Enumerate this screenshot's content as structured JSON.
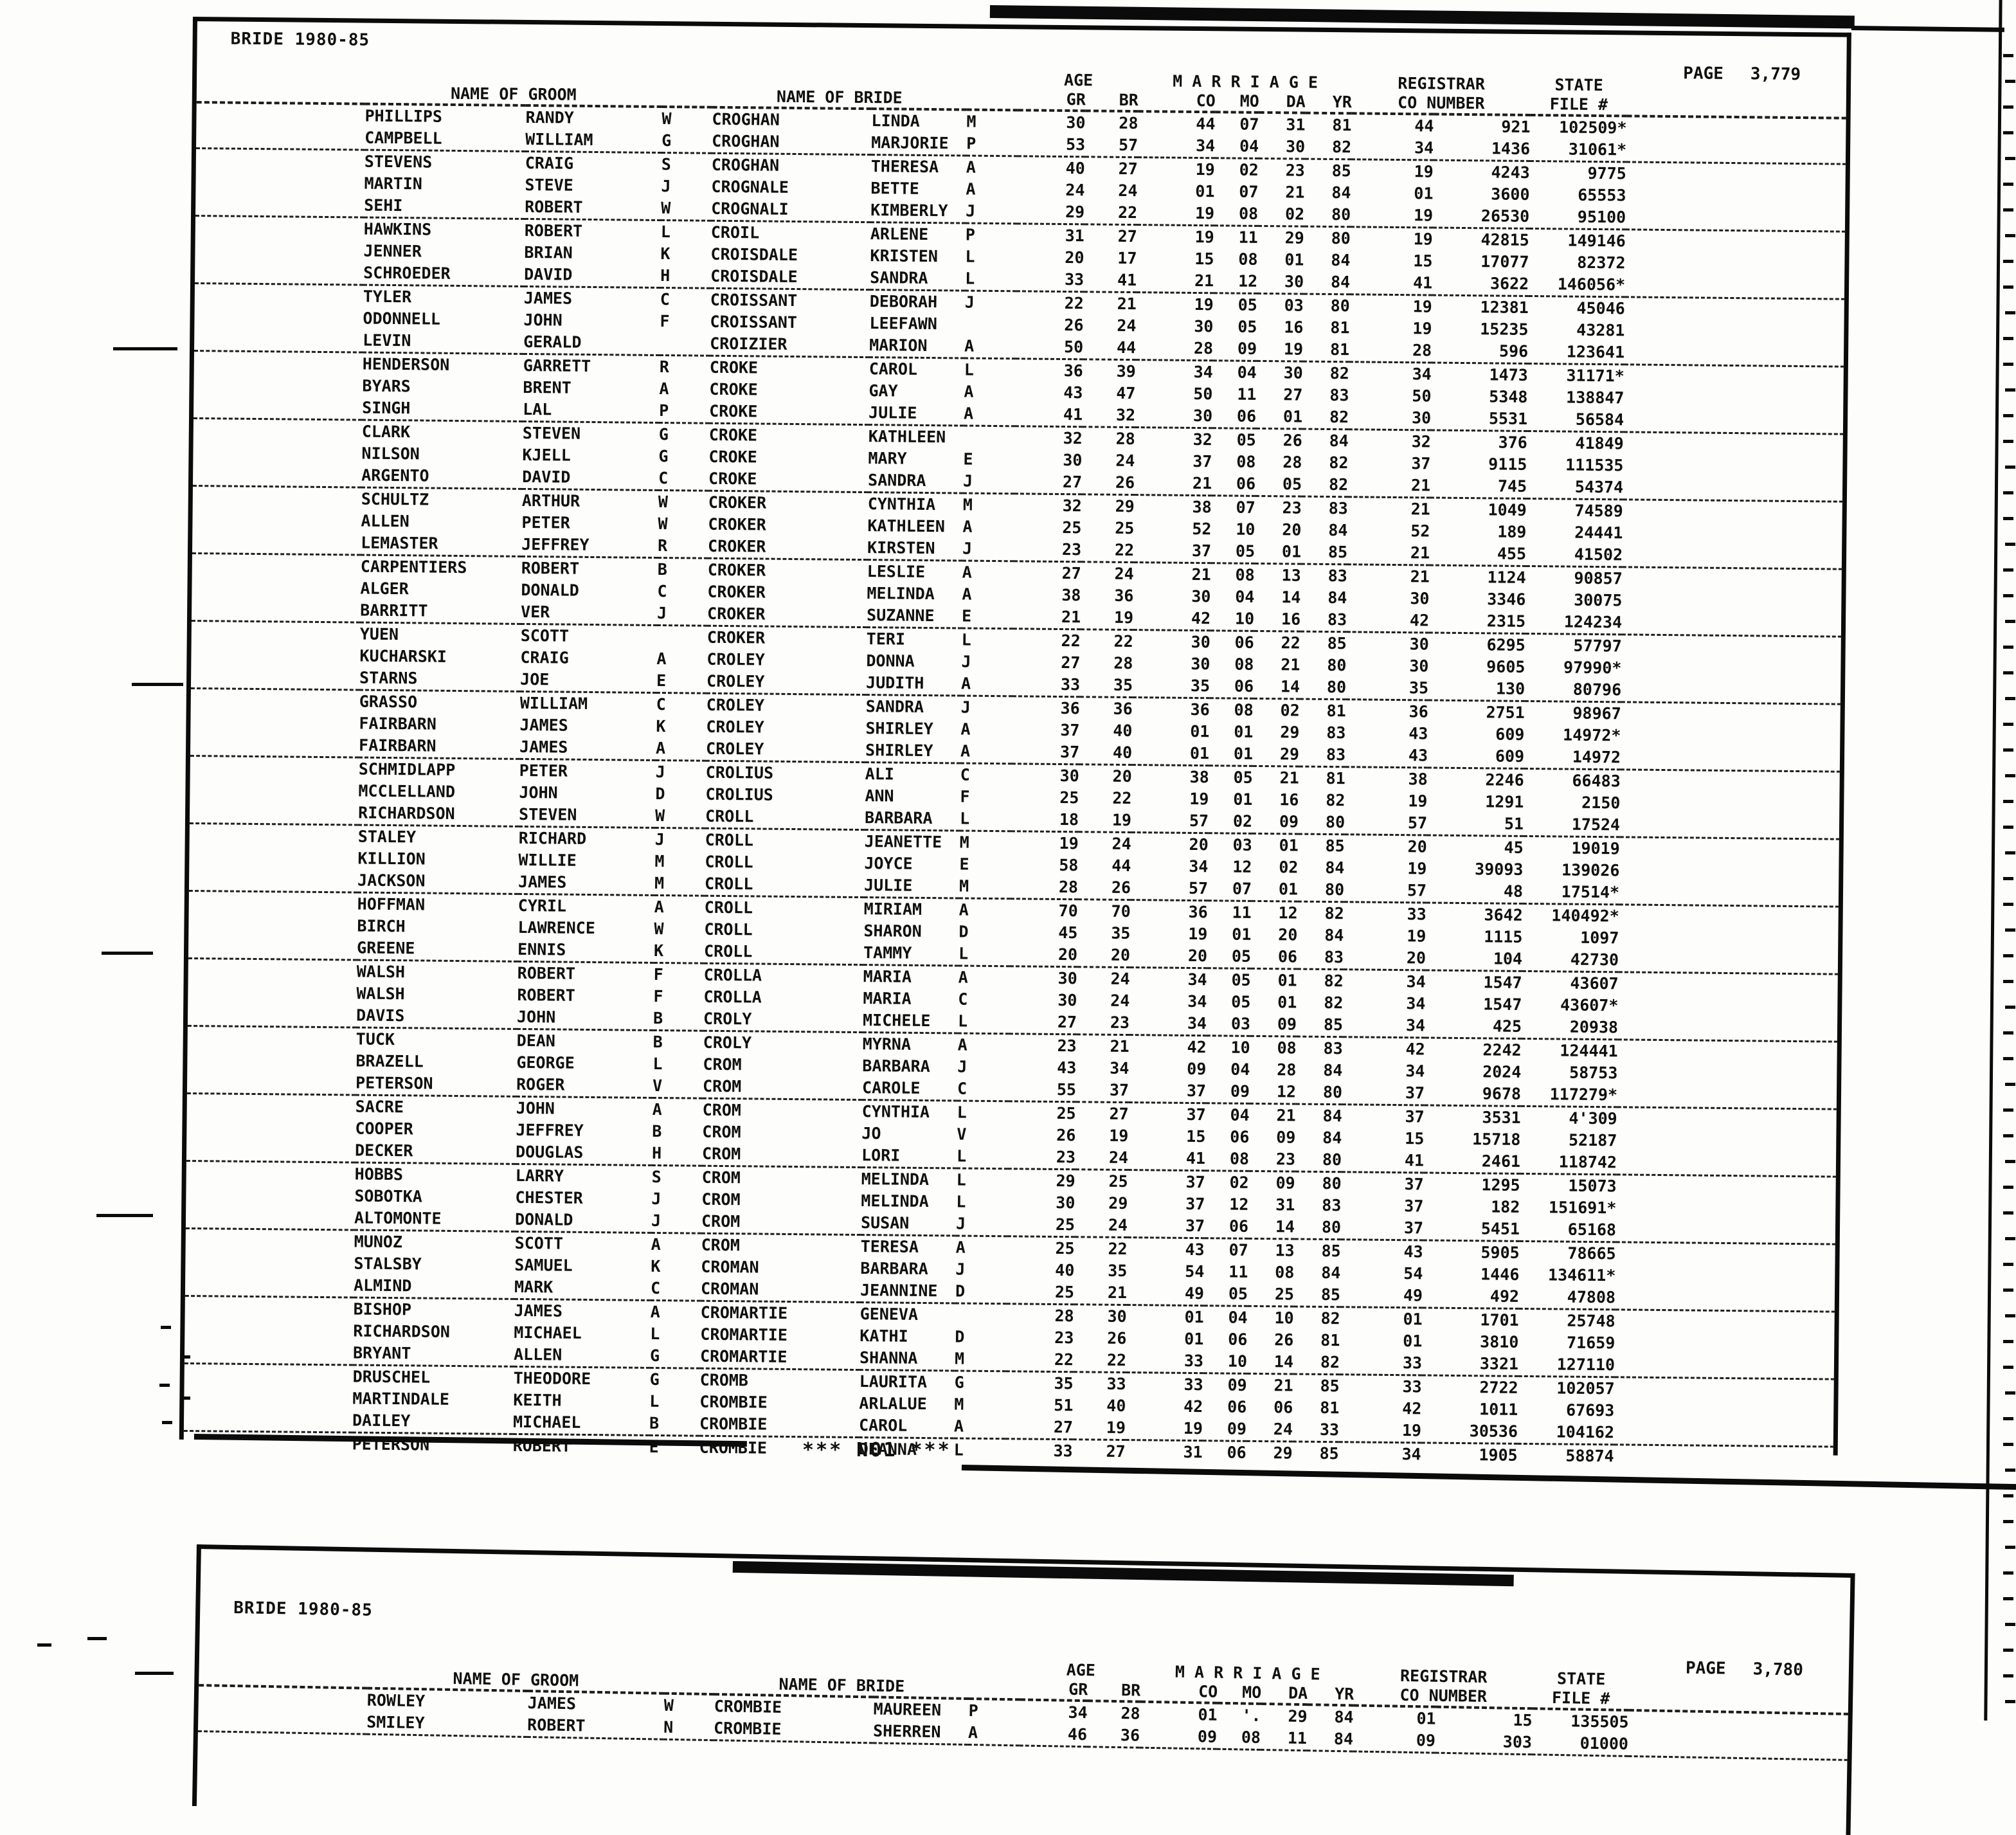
{
  "colors": {
    "ink": "#101010",
    "paper": "#fdfdfb"
  },
  "col_headers": {
    "groom": "NAME OF GROOM",
    "bride": "NAME OF BRIDE",
    "age": "AGE",
    "gr": "GR",
    "br": "BR",
    "marriage": "M A R R I A G E",
    "co": "CO",
    "mo": "MO",
    "da": "DA",
    "yr": "YR",
    "registrar": "REGISTRAR",
    "co_number": "CO NUMBER",
    "state": "STATE",
    "file": "FILE #"
  },
  "separator": {
    "text": "*** N01 ***"
  },
  "page1": {
    "title": "BRIDE 1980-85",
    "page_label": "PAGE",
    "page_number": "3,779",
    "rows": [
      [
        "PHILLIPS",
        "RANDY",
        "W",
        "CROGHAN",
        "LINDA",
        "M",
        "30",
        "28",
        "44",
        "07",
        "31",
        "81",
        "44",
        "921",
        "102509*"
      ],
      [
        "CAMPBELL",
        "WILLIAM",
        "G",
        "CROGHAN",
        "MARJORIE",
        "P",
        "53",
        "57",
        "34",
        "04",
        "30",
        "82",
        "34",
        "1436",
        "31061*"
      ],
      [
        "STEVENS",
        "CRAIG",
        "S",
        "CROGHAN",
        "THERESA",
        "A",
        "40",
        "27",
        "19",
        "02",
        "23",
        "85",
        "19",
        "4243",
        "9775"
      ],
      [
        "MARTIN",
        "STEVE",
        "J",
        "CROGNALE",
        "BETTE",
        "A",
        "24",
        "24",
        "01",
        "07",
        "21",
        "84",
        "01",
        "3600",
        "65553"
      ],
      [
        "SEHI",
        "ROBERT",
        "W",
        "CROGNALI",
        "KIMBERLY",
        "J",
        "29",
        "22",
        "19",
        "08",
        "02",
        "80",
        "19",
        "26530",
        "95100"
      ],
      [
        "HAWKINS",
        "ROBERT",
        "L",
        "CROIL",
        "ARLENE",
        "P",
        "31",
        "27",
        "19",
        "11",
        "29",
        "80",
        "19",
        "42815",
        "149146"
      ],
      [
        "JENNER",
        "BRIAN",
        "K",
        "CROISDALE",
        "KRISTEN",
        "L",
        "20",
        "17",
        "15",
        "08",
        "01",
        "84",
        "15",
        "17077",
        "82372"
      ],
      [
        "SCHROEDER",
        "DAVID",
        "H",
        "CROISDALE",
        "SANDRA",
        "L",
        "33",
        "41",
        "21",
        "12",
        "30",
        "84",
        "41",
        "3622",
        "146056*"
      ],
      [
        "TYLER",
        "JAMES",
        "C",
        "CROISSANT",
        "DEBORAH",
        "J",
        "22",
        "21",
        "19",
        "05",
        "03",
        "80",
        "19",
        "12381",
        "45046"
      ],
      [
        "ODONNELL",
        "JOHN",
        "F",
        "CROISSANT",
        "LEEFAWN",
        "",
        "26",
        "24",
        "30",
        "05",
        "16",
        "81",
        "19",
        "15235",
        "43281"
      ],
      [
        "LEVIN",
        "GERALD",
        "",
        "CROIZIER",
        "MARION",
        "A",
        "50",
        "44",
        "28",
        "09",
        "19",
        "81",
        "28",
        "596",
        "123641"
      ],
      [
        "HENDERSON",
        "GARRETT",
        "R",
        "CROKE",
        "CAROL",
        "L",
        "36",
        "39",
        "34",
        "04",
        "30",
        "82",
        "34",
        "1473",
        "31171*"
      ],
      [
        "BYARS",
        "BRENT",
        "A",
        "CROKE",
        "GAY",
        "A",
        "43",
        "47",
        "50",
        "11",
        "27",
        "83",
        "50",
        "5348",
        "138847"
      ],
      [
        "SINGH",
        "LAL",
        "P",
        "CROKE",
        "JULIE",
        "A",
        "41",
        "32",
        "30",
        "06",
        "01",
        "82",
        "30",
        "5531",
        "56584"
      ],
      [
        "CLARK",
        "STEVEN",
        "G",
        "CROKE",
        "KATHLEEN",
        "",
        "32",
        "28",
        "32",
        "05",
        "26",
        "84",
        "32",
        "376",
        "41849"
      ],
      [
        "NILSON",
        "KJELL",
        "G",
        "CROKE",
        "MARY",
        "E",
        "30",
        "24",
        "37",
        "08",
        "28",
        "82",
        "37",
        "9115",
        "111535"
      ],
      [
        "ARGENTO",
        "DAVID",
        "C",
        "CROKE",
        "SANDRA",
        "J",
        "27",
        "26",
        "21",
        "06",
        "05",
        "82",
        "21",
        "745",
        "54374"
      ],
      [
        "SCHULTZ",
        "ARTHUR",
        "W",
        "CROKER",
        "CYNTHIA",
        "M",
        "32",
        "29",
        "38",
        "07",
        "23",
        "83",
        "21",
        "1049",
        "74589"
      ],
      [
        "ALLEN",
        "PETER",
        "W",
        "CROKER",
        "KATHLEEN",
        "A",
        "25",
        "25",
        "52",
        "10",
        "20",
        "84",
        "52",
        "189",
        "24441"
      ],
      [
        "LEMASTER",
        "JEFFREY",
        "R",
        "CROKER",
        "KIRSTEN",
        "J",
        "23",
        "22",
        "37",
        "05",
        "01",
        "85",
        "21",
        "455",
        "41502"
      ],
      [
        "CARPENTIERS",
        "ROBERT",
        "B",
        "CROKER",
        "LESLIE",
        "A",
        "27",
        "24",
        "21",
        "08",
        "13",
        "83",
        "21",
        "1124",
        "90857"
      ],
      [
        "ALGER",
        "DONALD",
        "C",
        "CROKER",
        "MELINDA",
        "A",
        "38",
        "36",
        "30",
        "04",
        "14",
        "84",
        "30",
        "3346",
        "30075"
      ],
      [
        "BARRITT",
        "VER",
        "J",
        "CROKER",
        "SUZANNE",
        "E",
        "21",
        "19",
        "42",
        "10",
        "16",
        "83",
        "42",
        "2315",
        "124234"
      ],
      [
        "YUEN",
        "SCOTT",
        "",
        "CROKER",
        "TERI",
        "L",
        "22",
        "22",
        "30",
        "06",
        "22",
        "85",
        "30",
        "6295",
        "57797"
      ],
      [
        "KUCHARSKI",
        "CRAIG",
        "A",
        "CROLEY",
        "DONNA",
        "J",
        "27",
        "28",
        "30",
        "08",
        "21",
        "80",
        "30",
        "9605",
        "97990*"
      ],
      [
        "STARNS",
        "JOE",
        "E",
        "CROLEY",
        "JUDITH",
        "A",
        "33",
        "35",
        "35",
        "06",
        "14",
        "80",
        "35",
        "130",
        "80796"
      ],
      [
        "GRASSO",
        "WILLIAM",
        "C",
        "CROLEY",
        "SANDRA",
        "J",
        "36",
        "36",
        "36",
        "08",
        "02",
        "81",
        "36",
        "2751",
        "98967"
      ],
      [
        "FAIRBARN",
        "JAMES",
        "K",
        "CROLEY",
        "SHIRLEY",
        "A",
        "37",
        "40",
        "01",
        "01",
        "29",
        "83",
        "43",
        "609",
        "14972*"
      ],
      [
        "FAIRBARN",
        "JAMES",
        "A",
        "CROLEY",
        "SHIRLEY",
        "A",
        "37",
        "40",
        "01",
        "01",
        "29",
        "83",
        "43",
        "609",
        "14972"
      ],
      [
        "SCHMIDLAPP",
        "PETER",
        "J",
        "CROLIUS",
        "ALI",
        "C",
        "30",
        "20",
        "38",
        "05",
        "21",
        "81",
        "38",
        "2246",
        "66483"
      ],
      [
        "MCCLELLAND",
        "JOHN",
        "D",
        "CROLIUS",
        "ANN",
        "F",
        "25",
        "22",
        "19",
        "01",
        "16",
        "82",
        "19",
        "1291",
        "2150"
      ],
      [
        "RICHARDSON",
        "STEVEN",
        "W",
        "CROLL",
        "BARBARA",
        "L",
        "18",
        "19",
        "57",
        "02",
        "09",
        "80",
        "57",
        "51",
        "17524"
      ],
      [
        "STALEY",
        "RICHARD",
        "J",
        "CROLL",
        "JEANETTE",
        "M",
        "19",
        "24",
        "20",
        "03",
        "01",
        "85",
        "20",
        "45",
        "19019"
      ],
      [
        "KILLION",
        "WILLIE",
        "M",
        "CROLL",
        "JOYCE",
        "E",
        "58",
        "44",
        "34",
        "12",
        "02",
        "84",
        "19",
        "39093",
        "139026"
      ],
      [
        "JACKSON",
        "JAMES",
        "M",
        "CROLL",
        "JULIE",
        "M",
        "28",
        "26",
        "57",
        "07",
        "01",
        "80",
        "57",
        "48",
        "17514*"
      ],
      [
        "HOFFMAN",
        "CYRIL",
        "A",
        "CROLL",
        "MIRIAM",
        "A",
        "70",
        "70",
        "36",
        "11",
        "12",
        "82",
        "33",
        "3642",
        "140492*"
      ],
      [
        "BIRCH",
        "LAWRENCE",
        "W",
        "CROLL",
        "SHARON",
        "D",
        "45",
        "35",
        "19",
        "01",
        "20",
        "84",
        "19",
        "1115",
        "1097"
      ],
      [
        "GREENE",
        "ENNIS",
        "K",
        "CROLL",
        "TAMMY",
        "L",
        "20",
        "20",
        "20",
        "05",
        "06",
        "83",
        "20",
        "104",
        "42730"
      ],
      [
        "WALSH",
        "ROBERT",
        "F",
        "CROLLA",
        "MARIA",
        "A",
        "30",
        "24",
        "34",
        "05",
        "01",
        "82",
        "34",
        "1547",
        "43607"
      ],
      [
        "WALSH",
        "ROBERT",
        "F",
        "CROLLA",
        "MARIA",
        "C",
        "30",
        "24",
        "34",
        "05",
        "01",
        "82",
        "34",
        "1547",
        "43607*"
      ],
      [
        "DAVIS",
        "JOHN",
        "B",
        "CROLY",
        "MICHELE",
        "L",
        "27",
        "23",
        "34",
        "03",
        "09",
        "85",
        "34",
        "425",
        "20938"
      ],
      [
        "TUCK",
        "DEAN",
        "B",
        "CROLY",
        "MYRNA",
        "A",
        "23",
        "21",
        "42",
        "10",
        "08",
        "83",
        "42",
        "2242",
        "124441"
      ],
      [
        "BRAZELL",
        "GEORGE",
        "L",
        "CROM",
        "BARBARA",
        "J",
        "43",
        "34",
        "09",
        "04",
        "28",
        "84",
        "34",
        "2024",
        "58753"
      ],
      [
        "PETERSON",
        "ROGER",
        "V",
        "CROM",
        "CAROLE",
        "C",
        "55",
        "37",
        "37",
        "09",
        "12",
        "80",
        "37",
        "9678",
        "117279*"
      ],
      [
        "SACRE",
        "JOHN",
        "A",
        "CROM",
        "CYNTHIA",
        "L",
        "25",
        "27",
        "37",
        "04",
        "21",
        "84",
        "37",
        "3531",
        "4'309"
      ],
      [
        "COOPER",
        "JEFFREY",
        "B",
        "CROM",
        "JO",
        "V",
        "26",
        "19",
        "15",
        "06",
        "09",
        "84",
        "15",
        "15718",
        "52187"
      ],
      [
        "DECKER",
        "DOUGLAS",
        "H",
        "CROM",
        "LORI",
        "L",
        "23",
        "24",
        "41",
        "08",
        "23",
        "80",
        "41",
        "2461",
        "118742"
      ],
      [
        "HOBBS",
        "LARRY",
        "S",
        "CROM",
        "MELINDA",
        "L",
        "29",
        "25",
        "37",
        "02",
        "09",
        "80",
        "37",
        "1295",
        "15073"
      ],
      [
        "SOBOTKA",
        "CHESTER",
        "J",
        "CROM",
        "MELINDA",
        "L",
        "30",
        "29",
        "37",
        "12",
        "31",
        "83",
        "37",
        "182",
        "151691*"
      ],
      [
        "ALTOMONTE",
        "DONALD",
        "J",
        "CROM",
        "SUSAN",
        "J",
        "25",
        "24",
        "37",
        "06",
        "14",
        "80",
        "37",
        "5451",
        "65168"
      ],
      [
        "MUNOZ",
        "SCOTT",
        "A",
        "CROM",
        "TERESA",
        "A",
        "25",
        "22",
        "43",
        "07",
        "13",
        "85",
        "43",
        "5905",
        "78665"
      ],
      [
        "STALSBY",
        "SAMUEL",
        "K",
        "CROMAN",
        "BARBARA",
        "J",
        "40",
        "35",
        "54",
        "11",
        "08",
        "84",
        "54",
        "1446",
        "134611*"
      ],
      [
        "ALMIND",
        "MARK",
        "C",
        "CROMAN",
        "JEANNINE",
        "D",
        "25",
        "21",
        "49",
        "05",
        "25",
        "85",
        "49",
        "492",
        "47808"
      ],
      [
        "BISHOP",
        "JAMES",
        "A",
        "CROMARTIE",
        "GENEVA",
        "",
        "28",
        "30",
        "01",
        "04",
        "10",
        "82",
        "01",
        "1701",
        "25748"
      ],
      [
        "RICHARDSON",
        "MICHAEL",
        "L",
        "CROMARTIE",
        "KATHI",
        "D",
        "23",
        "26",
        "01",
        "06",
        "26",
        "81",
        "01",
        "3810",
        "71659"
      ],
      [
        "BRYANT",
        "ALLEN",
        "G",
        "CROMARTIE",
        "SHANNA",
        "M",
        "22",
        "22",
        "33",
        "10",
        "14",
        "82",
        "33",
        "3321",
        "127110"
      ],
      [
        "DRUSCHEL",
        "THEODORE",
        "G",
        "CROMB",
        "LAURITA",
        "G",
        "35",
        "33",
        "33",
        "09",
        "21",
        "85",
        "33",
        "2722",
        "102057"
      ],
      [
        "MARTINDALE",
        "KEITH",
        "L",
        "CROMBIE",
        "ARLALUE",
        "M",
        "51",
        "40",
        "42",
        "06",
        "06",
        "81",
        "42",
        "1011",
        "67693"
      ],
      [
        "DAILEY",
        "MICHAEL",
        "B",
        "CROMBIE",
        "CAROL",
        "A",
        "27",
        "19",
        "19",
        "09",
        "24",
        "33",
        "19",
        "30536",
        "104162"
      ],
      [
        "PETERSON",
        "ROBERT",
        "E",
        "CROMBIE",
        "DEANNA",
        "L",
        "33",
        "27",
        "31",
        "06",
        "29",
        "85",
        "34",
        "1905",
        "58874"
      ]
    ]
  },
  "page2": {
    "title": "BRIDE 1980-85",
    "page_label": "PAGE",
    "page_number": "3,780",
    "rows": [
      [
        "ROWLEY",
        "JAMES",
        "W",
        "CROMBIE",
        "MAUREEN",
        "P",
        "34",
        "28",
        "01",
        "'.",
        "29",
        "84",
        "01",
        "15",
        "135505"
      ],
      [
        "SMILEY",
        "ROBERT",
        "N",
        "CROMBIE",
        "SHERREN",
        "A",
        "46",
        "36",
        "09",
        "08",
        "11",
        "84",
        "09",
        "303",
        "01000"
      ]
    ]
  }
}
